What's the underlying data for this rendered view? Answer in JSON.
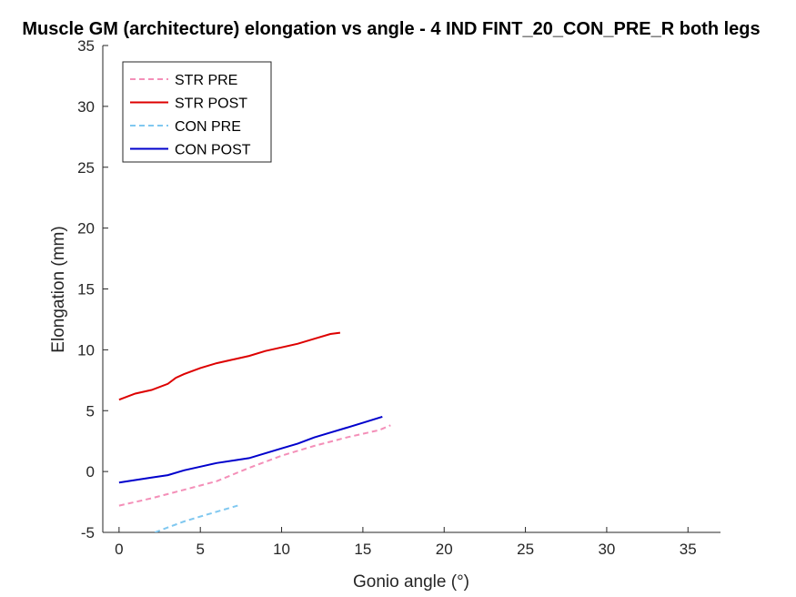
{
  "chart_data": {
    "type": "line",
    "title": "Muscle GM (architecture) elongation vs angle - 4 IND FINT_20_CON_PRE_R both legs",
    "xlabel": "Gonio angle (°)",
    "ylabel": "Elongation (mm)",
    "xlim": [
      -1,
      37
    ],
    "ylim": [
      -5,
      35
    ],
    "xticks": [
      0,
      5,
      10,
      15,
      20,
      25,
      30,
      35
    ],
    "yticks": [
      -5,
      0,
      5,
      10,
      15,
      20,
      25,
      30,
      35
    ],
    "grid": false,
    "legend_position": "top-left",
    "series": [
      {
        "name": "STR PRE",
        "color": "#f48fb8",
        "style": "dashed",
        "x": [
          0,
          2,
          4,
          6,
          8,
          10,
          12,
          14,
          16,
          16.7
        ],
        "y": [
          -2.8,
          -2.2,
          -1.5,
          -0.8,
          0.3,
          1.3,
          2.1,
          2.8,
          3.4,
          3.8
        ]
      },
      {
        "name": "STR POST",
        "color": "#dd0000",
        "style": "solid",
        "x": [
          0,
          1,
          2,
          3,
          3.5,
          4,
          5,
          6,
          7,
          8,
          9,
          10,
          11,
          12,
          13,
          13.6
        ],
        "y": [
          5.9,
          6.4,
          6.7,
          7.2,
          7.7,
          8.0,
          8.5,
          8.9,
          9.2,
          9.5,
          9.9,
          10.2,
          10.5,
          10.9,
          11.3,
          11.4
        ]
      },
      {
        "name": "CON PRE",
        "color": "#80c8f0",
        "style": "dashed",
        "x": [
          2.2,
          3,
          4,
          5,
          6,
          7.3
        ],
        "y": [
          -5.0,
          -4.6,
          -4.1,
          -3.7,
          -3.3,
          -2.8
        ]
      },
      {
        "name": "CON POST",
        "color": "#0000cc",
        "style": "solid",
        "x": [
          0,
          1,
          2,
          3,
          4,
          5,
          6,
          7,
          8,
          9,
          10,
          11,
          12,
          13,
          14,
          15,
          16.2
        ],
        "y": [
          -0.9,
          -0.7,
          -0.5,
          -0.3,
          0.1,
          0.4,
          0.7,
          0.9,
          1.1,
          1.5,
          1.9,
          2.3,
          2.8,
          3.2,
          3.6,
          4.0,
          4.5
        ]
      }
    ]
  }
}
